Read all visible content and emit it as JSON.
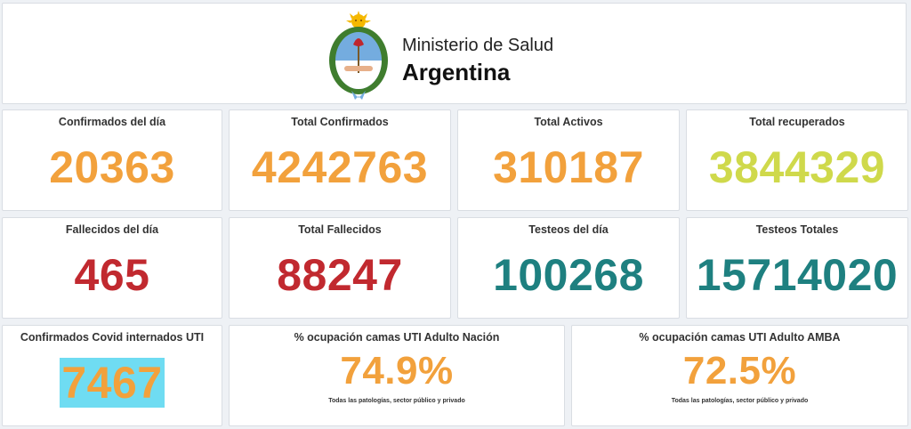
{
  "header": {
    "org_line1": "Ministerio de Salud",
    "org_line2": "Argentina",
    "logo": "argentina-coat-of-arms-icon"
  },
  "row1": [
    {
      "label": "Confirmados del día",
      "value": "20363",
      "color": "#f2a13c"
    },
    {
      "label": "Total Confirmados",
      "value": "4242763",
      "color": "#f2a13c"
    },
    {
      "label": "Total Activos",
      "value": "310187",
      "color": "#f2a13c"
    },
    {
      "label": "Total recuperados",
      "value": "3844329",
      "color": "#cfd94b"
    }
  ],
  "row2": [
    {
      "label": "Fallecidos del día",
      "value": "465",
      "color": "#c1292f"
    },
    {
      "label": "Total Fallecidos",
      "value": "88247",
      "color": "#c1292f"
    },
    {
      "label": "Testeos del día",
      "value": "100268",
      "color": "#1e8080"
    },
    {
      "label": "Testeos Totales",
      "value": "15714020",
      "color": "#1e8080"
    }
  ],
  "row3": {
    "uti": {
      "label": "Confirmados Covid internados UTI",
      "value": "7467",
      "color": "#f2a13c",
      "highlight": "#6fdcf2"
    },
    "nacion": {
      "label": "% ocupación camas UTI Adulto Nación",
      "value": "74.9%",
      "note": "Todas las patologías, sector público y privado",
      "color": "#f2a13c"
    },
    "amba": {
      "label": "% ocupación camas UTI Adulto AMBA",
      "value": "72.5%",
      "note": "Todas las patologías, sector público y privado",
      "color": "#f2a13c"
    }
  }
}
